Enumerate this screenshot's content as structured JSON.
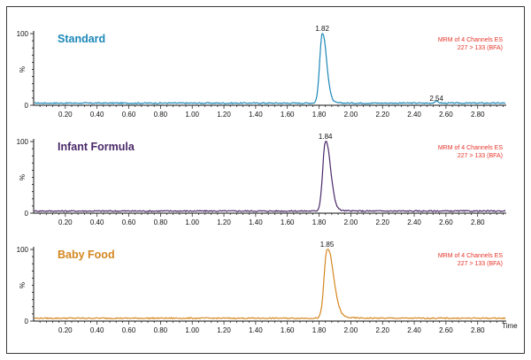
{
  "chart_data": [
    {
      "type": "line",
      "title": "Standard",
      "info_lines": [
        "MRM of 4 Channels ES",
        "227 > 133 (BFA)"
      ],
      "ylabel": "%",
      "x_ticks": [
        "0.20",
        "0.40",
        "0.60",
        "0.80",
        "1.00",
        "1.20",
        "1.40",
        "1.60",
        "1.80",
        "2.00",
        "2.20",
        "2.40",
        "2.60",
        "2.80"
      ],
      "y_ticks": [
        "100",
        "0"
      ],
      "xlim": [
        0.0,
        2.98
      ],
      "ylim": [
        0,
        100
      ],
      "color": "#1b87b8",
      "baseline": 3,
      "peak": {
        "rt": 1.82,
        "label": "1.82",
        "height": 100,
        "width": 0.016,
        "tail": 0.03
      },
      "minor_peak": {
        "rt": 2.54,
        "label": "2.54",
        "height": 2.5
      }
    },
    {
      "type": "line",
      "title": "Infant Formula",
      "info_lines": [
        "MRM of 4 Channels ES",
        "227 > 133 (BFA)"
      ],
      "ylabel": "%",
      "x_ticks": [
        "0.20",
        "0.40",
        "0.60",
        "0.80",
        "1.00",
        "1.20",
        "1.40",
        "1.60",
        "1.80",
        "2.00",
        "2.20",
        "2.40",
        "2.60",
        "2.80"
      ],
      "y_ticks": [
        "100",
        "0"
      ],
      "xlim": [
        0.0,
        2.98
      ],
      "ylim": [
        0,
        100
      ],
      "color": "#4a2868",
      "baseline": 3,
      "peak": {
        "rt": 1.84,
        "label": "1.84",
        "height": 100,
        "width": 0.017,
        "tail": 0.04
      }
    },
    {
      "type": "line",
      "title": "Baby Food",
      "info_lines": [
        "MRM of 4 Channels ES",
        "227 > 133 (BFA)"
      ],
      "ylabel": "%",
      "x_ticks": [
        "0.20",
        "0.40",
        "0.60",
        "0.80",
        "1.00",
        "1.20",
        "1.40",
        "1.60",
        "1.80",
        "2.00",
        "2.20",
        "2.40",
        "2.60",
        "2.80"
      ],
      "y_ticks": [
        "100",
        "0"
      ],
      "xlim": [
        0.0,
        2.98
      ],
      "ylim": [
        0,
        100
      ],
      "xlabel": "Time",
      "color": "#d4861f",
      "baseline": 4,
      "peak": {
        "rt": 1.85,
        "label": "1.85",
        "height": 100,
        "width": 0.018,
        "tail": 0.06
      }
    }
  ],
  "colors": {
    "info_text": "#e8342a",
    "axis": "#111111"
  }
}
